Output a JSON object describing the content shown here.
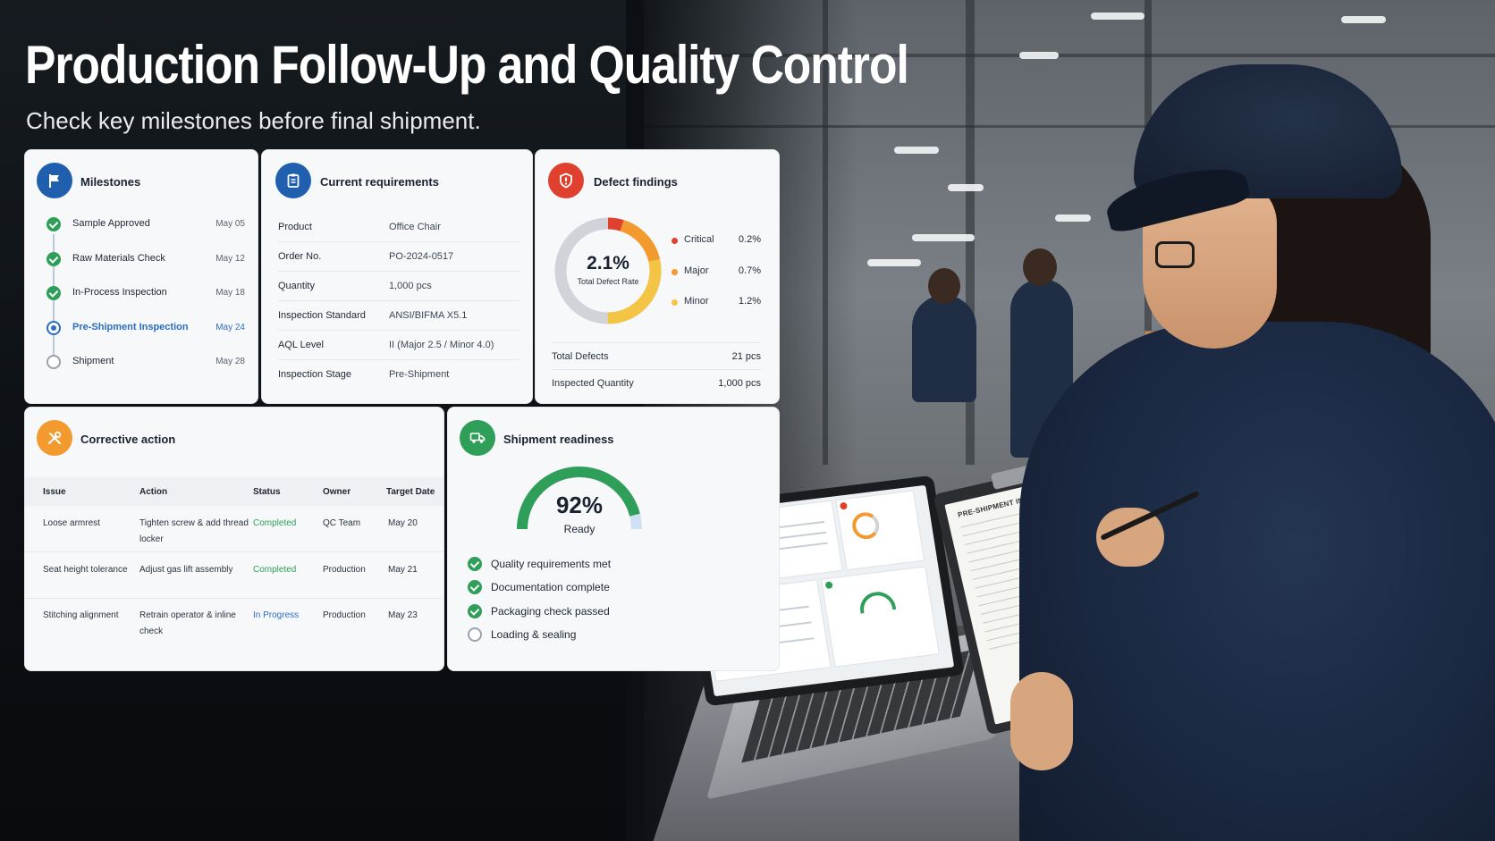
{
  "header": {
    "title": "Production Follow-Up and Quality Control",
    "subtitle": "Check key milestones before final shipment."
  },
  "colors": {
    "blue": "#1f5fae",
    "green": "#2f9e58",
    "red": "#e0412f",
    "orange": "#f29a2e",
    "yellow": "#f4c545",
    "gray": "#d0d4d8"
  },
  "milestones": {
    "title": "Milestones",
    "icon": "flag-icon",
    "items": [
      {
        "label": "Sample Approved",
        "date": "May 05",
        "state": "done"
      },
      {
        "label": "Raw Materials Check",
        "date": "May 12",
        "state": "done"
      },
      {
        "label": "In-Process Inspection",
        "date": "May 18",
        "state": "done"
      },
      {
        "label": "Pre-Shipment Inspection",
        "date": "May 24",
        "state": "current"
      },
      {
        "label": "Shipment",
        "date": "May 28",
        "state": "pending"
      }
    ]
  },
  "requirements": {
    "title": "Current requirements",
    "icon": "clipboard-icon",
    "rows": [
      {
        "key": "Product",
        "value": "Office Chair"
      },
      {
        "key": "Order No.",
        "value": "PO-2024-0517"
      },
      {
        "key": "Quantity",
        "value": "1,000 pcs"
      },
      {
        "key": "Inspection Standard",
        "value": "ANSI/BIFMA X5.1"
      },
      {
        "key": "AQL Level",
        "value": "II (Major 2.5 / Minor 4.0)"
      },
      {
        "key": "Inspection Stage",
        "value": "Pre-Shipment"
      }
    ]
  },
  "defects": {
    "title": "Defect findings",
    "icon": "shield-alert-icon",
    "rate": "2.1%",
    "rate_label": "Total Defect Rate",
    "rate_value": 2.1,
    "breakdown": [
      {
        "name": "Critical",
        "value_label": "0.2%",
        "value": 0.2,
        "color": "#e0412f"
      },
      {
        "name": "Major",
        "value_label": "0.7%",
        "value": 0.7,
        "color": "#f29a2e"
      },
      {
        "name": "Minor",
        "value_label": "1.2%",
        "value": 1.2,
        "color": "#f4c545"
      }
    ],
    "stats": [
      {
        "key": "Total Defects",
        "value": "21 pcs"
      },
      {
        "key": "Inspected Quantity",
        "value": "1,000 pcs"
      }
    ]
  },
  "corrective": {
    "title": "Corrective action",
    "icon": "wrench-screwdriver-icon",
    "columns": [
      "Issue",
      "Action",
      "Status",
      "Owner",
      "Target Date"
    ],
    "rows": [
      {
        "issue": "Loose armrest",
        "action": "Tighten screw & add thread locker",
        "status": "Completed",
        "status_kind": "completed",
        "owner": "QC Team",
        "target": "May 20"
      },
      {
        "issue": "Seat height tolerance",
        "action": "Adjust gas lift assembly",
        "status": "Completed",
        "status_kind": "completed",
        "owner": "Production",
        "target": "May 21"
      },
      {
        "issue": "Stitching alignment",
        "action": "Retrain operator & inline check",
        "status": "In Progress",
        "status_kind": "progress",
        "owner": "Production",
        "target": "May 23"
      }
    ]
  },
  "readiness": {
    "title": "Shipment readiness",
    "icon": "truck-icon",
    "percent_label": "92%",
    "percent": 92,
    "status": "Ready",
    "checks": [
      {
        "label": "Quality requirements met",
        "done": true
      },
      {
        "label": "Documentation complete",
        "done": true
      },
      {
        "label": "Packaging check passed",
        "done": true
      },
      {
        "label": "Loading & sealing",
        "done": false
      }
    ]
  },
  "clipboard_sheet": {
    "title": "PRE-SHIPMENT INSPECTION"
  }
}
